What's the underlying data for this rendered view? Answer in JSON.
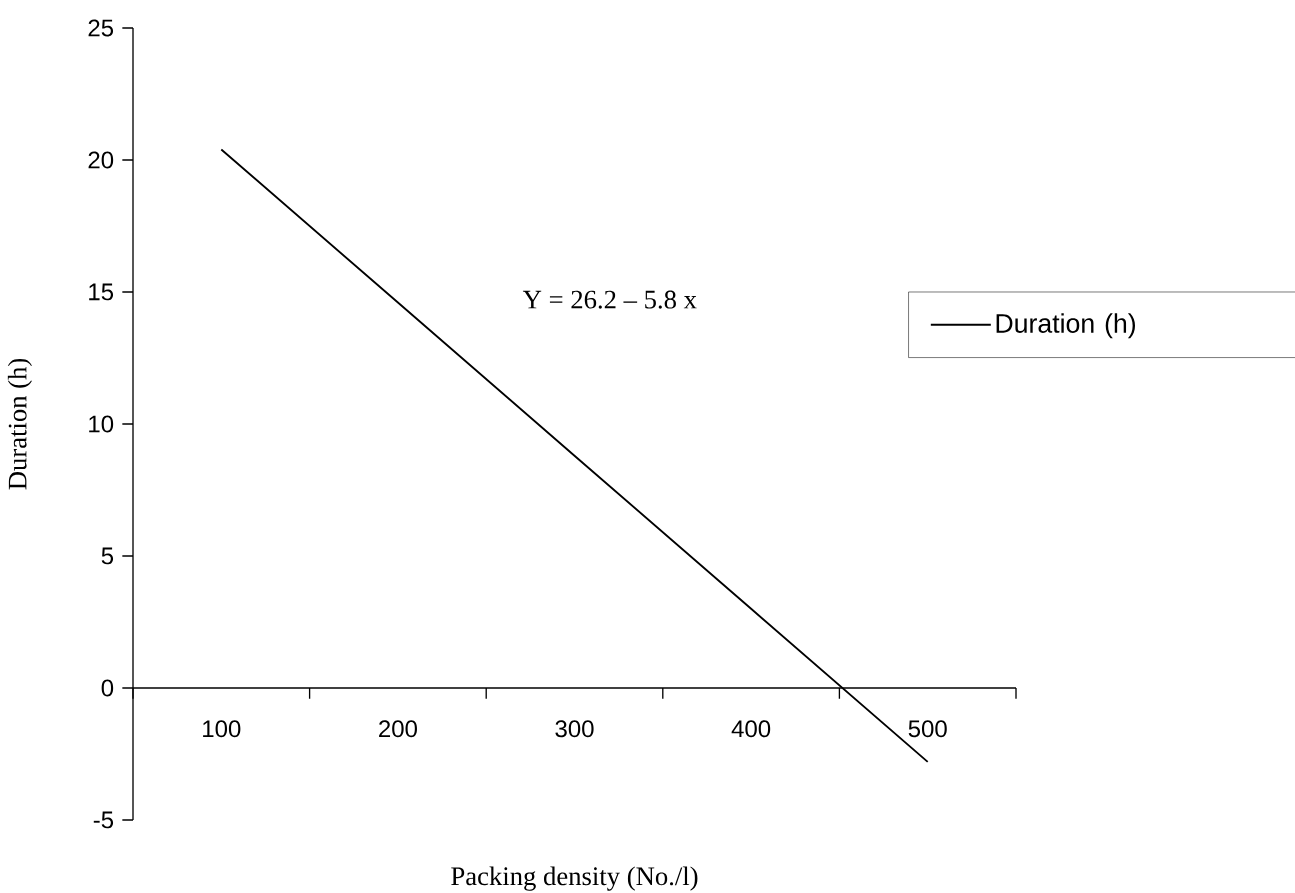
{
  "chart_data": {
    "type": "line",
    "xlabel": "Packing density (No./l)",
    "ylabel": "Duration (h)",
    "categories": [
      "100",
      "200",
      "300",
      "400",
      "500"
    ],
    "series": [
      {
        "name": "Duration (h)",
        "color": "#000000",
        "values": [
          20.4,
          14.6,
          8.8,
          3.0,
          -2.8
        ]
      }
    ],
    "ylim": [
      -5,
      25
    ],
    "yticks": [
      -5,
      0,
      5,
      10,
      15,
      20,
      25
    ],
    "annotations": [
      "Y = 26.2 – 5.8 x"
    ],
    "legend": "right",
    "grid": false,
    "marker": "none",
    "line_style": "solid"
  }
}
